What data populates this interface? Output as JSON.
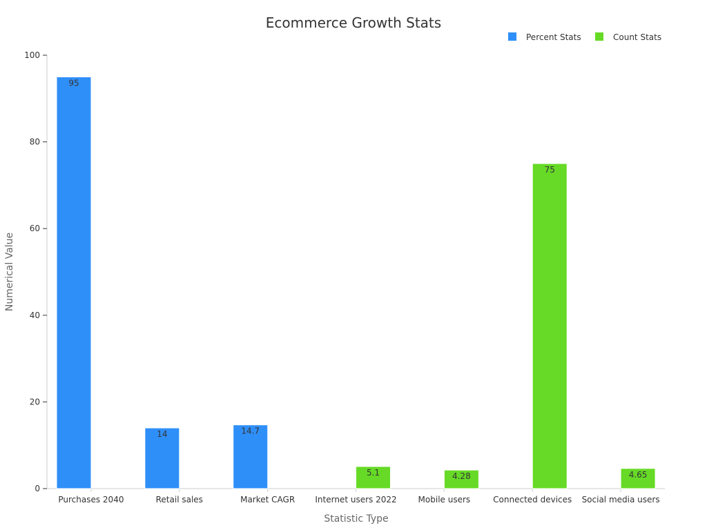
{
  "chart_data": {
    "type": "bar",
    "title": "Ecommerce Growth Stats",
    "xlabel": "Statistic Type",
    "ylabel": "Numerical Value",
    "ylim": [
      0,
      100
    ],
    "yticks": [
      0,
      20,
      40,
      60,
      80,
      100
    ],
    "grid": false,
    "legend_position": "top-right",
    "categories": [
      "Purchases 2040",
      "Retail sales",
      "Market CAGR",
      "Internet users 2022",
      "Mobile users",
      "Connected devices",
      "Social media users"
    ],
    "series": [
      {
        "name": "Percent Stats",
        "color": "#2f8ff8",
        "values": [
          95,
          14,
          14.7,
          null,
          null,
          null,
          null
        ],
        "labels": [
          "95",
          "14",
          "14.7",
          "",
          "",
          "",
          ""
        ]
      },
      {
        "name": "Count Stats",
        "color": "#66da26",
        "values": [
          null,
          null,
          null,
          5.1,
          4.28,
          75,
          4.65
        ],
        "labels": [
          "",
          "",
          "",
          "5.1",
          "4.28",
          "75",
          "4.65"
        ]
      }
    ]
  }
}
